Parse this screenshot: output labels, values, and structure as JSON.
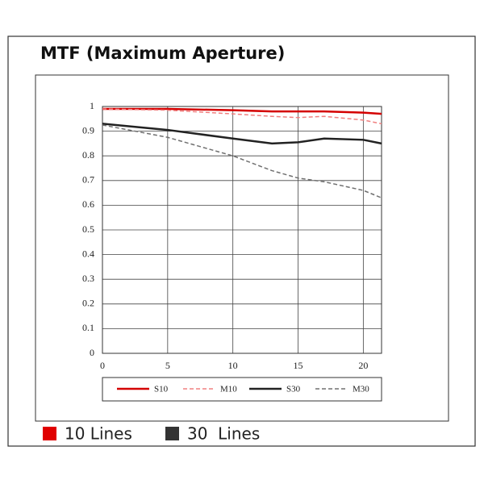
{
  "chart_data": {
    "type": "line",
    "title": "MTF (Maximum Aperture)",
    "x": [
      0,
      5,
      10,
      13,
      15,
      17,
      20,
      21.4
    ],
    "series": [
      {
        "name": "S10",
        "color": "#d40000",
        "dashed": false,
        "values": [
          0.99,
          0.99,
          0.985,
          0.98,
          0.98,
          0.98,
          0.975,
          0.97
        ]
      },
      {
        "name": "M10",
        "color": "#f08080",
        "dashed": true,
        "values": [
          0.99,
          0.985,
          0.97,
          0.96,
          0.955,
          0.96,
          0.945,
          0.93
        ]
      },
      {
        "name": "S30",
        "color": "#222222",
        "dashed": false,
        "values": [
          0.93,
          0.905,
          0.87,
          0.85,
          0.855,
          0.87,
          0.865,
          0.85
        ]
      },
      {
        "name": "M30",
        "color": "#707070",
        "dashed": true,
        "values": [
          0.925,
          0.875,
          0.8,
          0.74,
          0.71,
          0.695,
          0.66,
          0.63
        ]
      }
    ],
    "xlim": [
      0,
      21.4
    ],
    "xticks": [
      0,
      5,
      10,
      15,
      20
    ],
    "ylim": [
      0,
      1
    ],
    "yticks": [
      0,
      0.1,
      0.2,
      0.3,
      0.4,
      0.5,
      0.6,
      0.7,
      0.8,
      0.9,
      1
    ],
    "grid": true
  },
  "footer_legend": [
    {
      "label": "10 Lines",
      "color": "#e00000"
    },
    {
      "label": "30  Lines",
      "color": "#333333"
    }
  ]
}
